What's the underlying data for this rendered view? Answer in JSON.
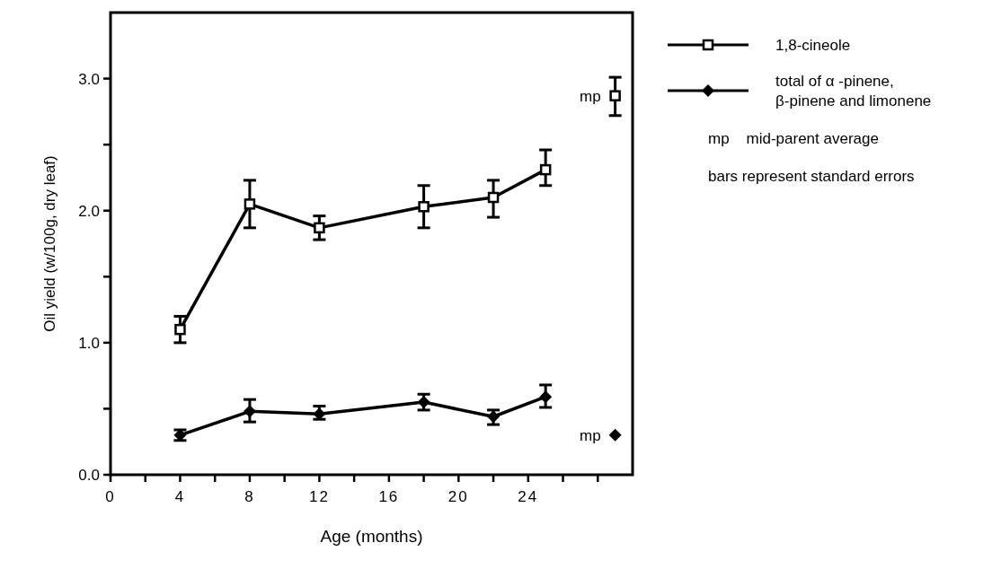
{
  "chart_data": {
    "type": "line",
    "xlabel": "Age (months)",
    "ylabel": "Oil yield (w/100g, dry leaf)",
    "xlim": [
      0,
      30
    ],
    "ylim": [
      0,
      3.5
    ],
    "xticks": [
      0,
      {
        "value": 2,
        "label": null
      },
      4,
      {
        "value": 6,
        "label": null
      },
      8,
      {
        "value": 10,
        "label": null
      },
      12,
      {
        "value": 14,
        "label": null
      },
      16,
      {
        "value": 18,
        "label": null
      },
      20,
      {
        "value": 22,
        "label": null
      },
      24,
      {
        "value": 26,
        "label": null
      },
      {
        "value": 28,
        "label": null
      }
    ],
    "yticks": [
      {
        "value": 0,
        "label": "0.0"
      },
      {
        "value": 0.5,
        "label": null
      },
      {
        "value": 1,
        "label": "1.0"
      },
      {
        "value": 1.5,
        "label": null
      },
      {
        "value": 2,
        "label": "2.0"
      },
      {
        "value": 2.5,
        "label": null
      },
      {
        "value": 3,
        "label": "3.0"
      }
    ],
    "legend": "top right",
    "grid": false,
    "series": [
      {
        "name": "1,8-cineole",
        "marker": "square",
        "color": "#000000",
        "x": [
          4,
          8,
          12,
          18,
          22,
          25
        ],
        "values": [
          1.1,
          2.05,
          1.87,
          2.03,
          2.1,
          2.31
        ],
        "errors": [
          [
            1.0,
            1.2
          ],
          [
            1.87,
            2.23
          ],
          [
            1.78,
            1.96
          ],
          [
            1.87,
            2.19
          ],
          [
            1.95,
            2.23
          ],
          [
            2.19,
            2.46
          ]
        ]
      },
      {
        "name": "total of α -pinene, β-pinene and limonene",
        "marker": "diamond",
        "color": "#000000",
        "x": [
          4,
          8,
          12,
          18,
          22,
          25
        ],
        "values": [
          0.3,
          0.48,
          0.46,
          0.55,
          0.44,
          0.59
        ],
        "errors": [
          [
            0.26,
            0.34
          ],
          [
            0.4,
            0.57
          ],
          [
            0.42,
            0.52
          ],
          [
            0.49,
            0.61
          ],
          [
            0.38,
            0.49
          ],
          [
            0.51,
            0.68
          ]
        ]
      },
      {
        "type": "scatter",
        "marker": "square",
        "color": "#000000",
        "x": [
          29
        ],
        "values": [
          2.87
        ],
        "errors": [
          [
            2.72,
            3.01
          ]
        ]
      },
      {
        "type": "scatter",
        "marker": "diamond",
        "color": "#000000",
        "x": [
          29
        ],
        "values": [
          0.3
        ]
      }
    ],
    "annotations": [
      {
        "text": "mp",
        "x": 29,
        "y": 2.87
      },
      {
        "text": "mp",
        "x": 29,
        "y": 0.3
      },
      "mp    mid-parent average",
      "bars represent standard errors"
    ]
  }
}
